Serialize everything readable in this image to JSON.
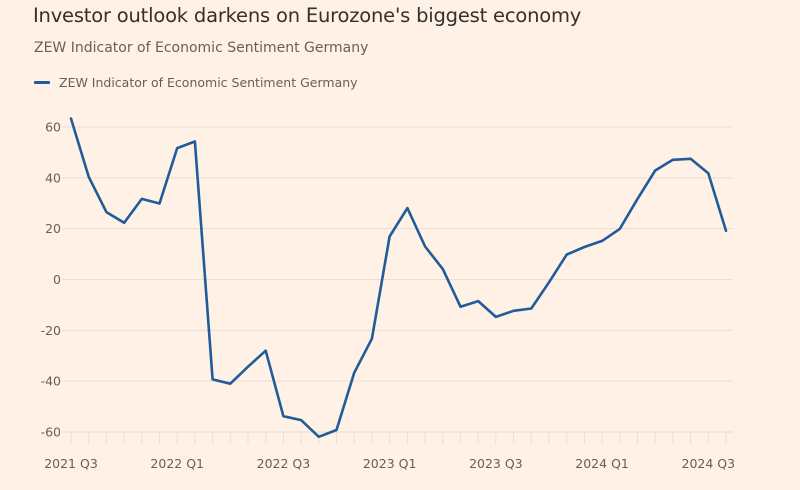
{
  "header": {
    "title": "Investor outlook darkens on Eurozone's biggest economy",
    "subtitle": "ZEW Indicator of Economic Sentiment Germany"
  },
  "colors": {
    "background": "#FFF1E5",
    "series": "#1F5C99",
    "grid": "#E9DED6",
    "text": "#66605C"
  },
  "chart_data": {
    "type": "line",
    "title": "Investor outlook darkens on Eurozone's biggest economy",
    "subtitle": "ZEW Indicator of Economic Sentiment Germany",
    "xlabel": "",
    "ylabel": "",
    "ylim": [
      -60,
      60
    ],
    "yticks": [
      60,
      40,
      20,
      0,
      -20,
      -40,
      -60
    ],
    "grid": true,
    "legend_position": "top-left",
    "x": [
      "2021-07",
      "2021-08",
      "2021-09",
      "2021-10",
      "2021-11",
      "2021-12",
      "2022-01",
      "2022-02",
      "2022-03",
      "2022-04",
      "2022-05",
      "2022-06",
      "2022-07",
      "2022-08",
      "2022-09",
      "2022-10",
      "2022-11",
      "2022-12",
      "2023-01",
      "2023-02",
      "2023-03",
      "2023-04",
      "2023-05",
      "2023-06",
      "2023-07",
      "2023-08",
      "2023-09",
      "2023-10",
      "2023-11",
      "2023-12",
      "2024-01",
      "2024-02",
      "2024-03",
      "2024-04",
      "2024-05",
      "2024-06",
      "2024-07",
      "2024-08"
    ],
    "xtick_labels": [
      {
        "label": "2021 Q3",
        "index": 0
      },
      {
        "label": "2022 Q1",
        "index": 6
      },
      {
        "label": "2022 Q3",
        "index": 12
      },
      {
        "label": "2023 Q1",
        "index": 18
      },
      {
        "label": "2023 Q3",
        "index": 24
      },
      {
        "label": "2024 Q1",
        "index": 30
      },
      {
        "label": "2024 Q3",
        "index": 36
      }
    ],
    "series": [
      {
        "name": "ZEW Indicator of Economic Sentiment Germany",
        "color": "#1F5C99",
        "values": [
          63.3,
          40.4,
          26.5,
          22.3,
          31.7,
          29.9,
          51.7,
          54.3,
          -39.3,
          -41.0,
          -34.3,
          -28.0,
          -53.8,
          -55.3,
          -61.9,
          -59.2,
          -36.7,
          -23.3,
          16.9,
          28.1,
          13.0,
          4.1,
          -10.7,
          -8.5,
          -14.7,
          -12.3,
          -11.4,
          -1.1,
          9.8,
          12.8,
          15.2,
          19.9,
          31.7,
          42.9,
          47.1,
          47.5,
          41.8,
          19.2
        ]
      }
    ]
  }
}
